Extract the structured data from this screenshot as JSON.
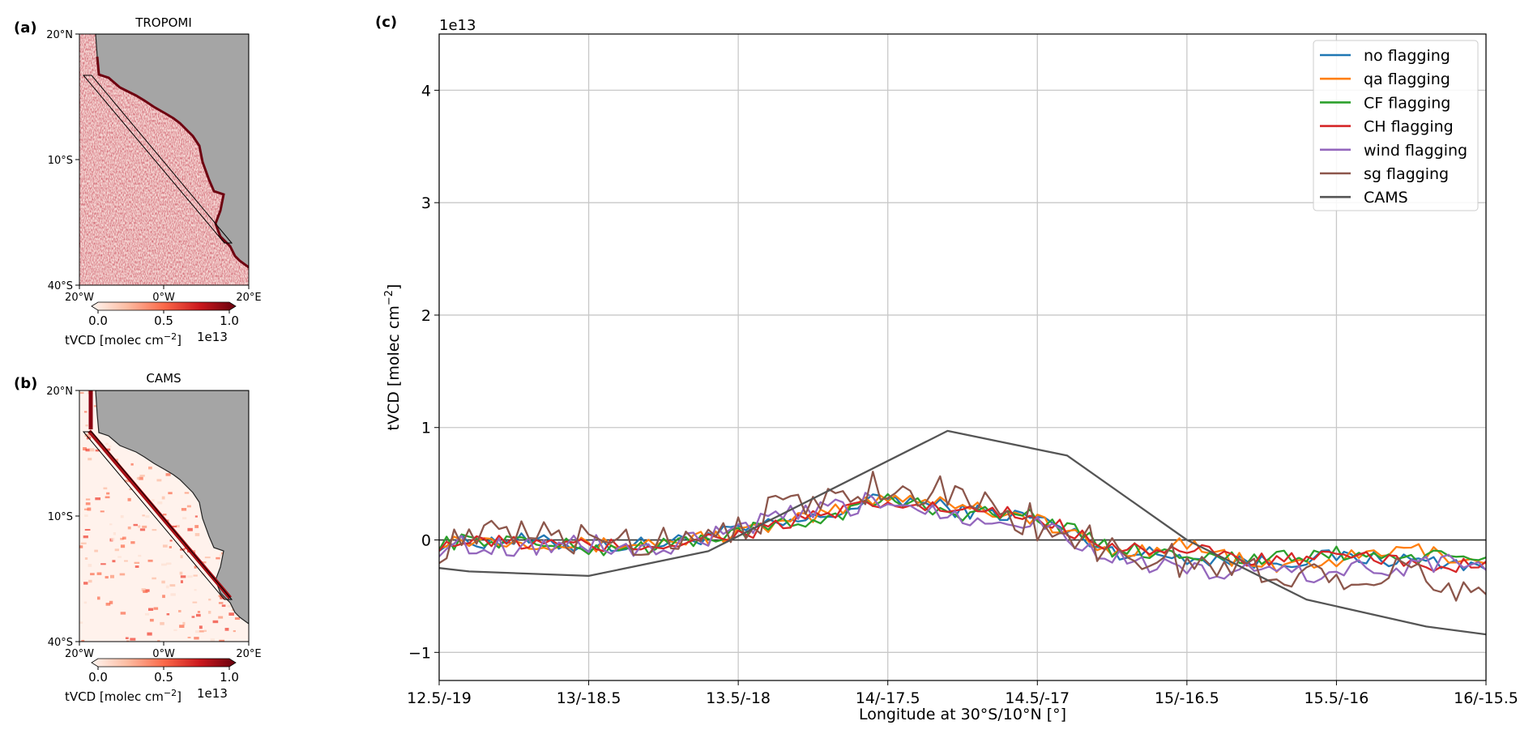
{
  "panel_a": {
    "tag": "(a)",
    "title": "TROPOMI",
    "lat_ticks": [
      "20°N",
      "10°S",
      "40°S"
    ],
    "lon_ticks": [
      "20°W",
      "0°W",
      "20°E"
    ],
    "colorbar": {
      "ticks": [
        "0.0",
        "0.5",
        "1.0"
      ],
      "label": "tVCD [molec cm",
      "label_sup": "−2",
      "label_end": "]",
      "exponent": "1e13",
      "colormap": "Reds"
    },
    "land_color": "#a5a5a5"
  },
  "panel_b": {
    "tag": "(b)",
    "title": "CAMS",
    "lat_ticks": [
      "20°N",
      "10°S",
      "40°S"
    ],
    "lon_ticks": [
      "20°W",
      "0°W",
      "20°E"
    ],
    "colorbar": {
      "ticks": [
        "0.0",
        "0.5",
        "1.0"
      ],
      "label": "tVCD [molec cm",
      "label_sup": "−2",
      "label_end": "]",
      "exponent": "1e13",
      "colormap": "Reds"
    },
    "land_color": "#a5a5a5"
  },
  "chart_data": {
    "type": "line",
    "tag": "(c)",
    "title": "",
    "xlabel": "Longitude at 30°S/10°N [°]",
    "ylabel_main": "tVCD [molec cm",
    "ylabel_sup": "−2",
    "ylabel_end": "]",
    "y_exponent": "1e13",
    "xlim": [
      0,
      7
    ],
    "ylim": [
      -1.25,
      4.5
    ],
    "x_tick_labels": [
      "12.5/-19",
      "13/-18.5",
      "13.5/-18",
      "14/-17.5",
      "14.5/-17",
      "15/-16.5",
      "15.5/-16",
      "16/-15.5"
    ],
    "y_ticks": [
      -1,
      0,
      1,
      2,
      3,
      4
    ],
    "grid": true,
    "legend_position": "top-right",
    "zero_line": true,
    "series": [
      {
        "name": "no flagging",
        "color": "#1f77b4",
        "anchors_x": [
          0,
          0.5,
          1,
          1.5,
          2,
          2.5,
          3,
          3.5,
          4,
          4.5,
          5,
          5.5,
          6,
          6.5,
          7
        ],
        "anchors_y": [
          -0.03,
          0.0,
          -0.06,
          -0.03,
          0.08,
          0.18,
          0.38,
          0.26,
          0.2,
          -0.1,
          -0.15,
          -0.2,
          -0.15,
          -0.18,
          -0.22
        ]
      },
      {
        "name": "qa flagging",
        "color": "#ff7f0e",
        "anchors_x": [
          0,
          0.5,
          1,
          1.5,
          2,
          2.5,
          3,
          3.5,
          4,
          4.5,
          5,
          5.5,
          6,
          6.5,
          7
        ],
        "anchors_y": [
          0.0,
          0.0,
          -0.05,
          -0.02,
          0.06,
          0.2,
          0.4,
          0.32,
          0.18,
          -0.12,
          -0.03,
          -0.25,
          -0.18,
          -0.08,
          -0.2
        ]
      },
      {
        "name": "CF flagging",
        "color": "#2ca02c",
        "anchors_x": [
          0,
          0.5,
          1,
          1.5,
          2,
          2.5,
          3,
          3.5,
          4,
          4.5,
          5,
          5.5,
          6,
          6.5,
          7
        ],
        "anchors_y": [
          -0.02,
          0.0,
          -0.08,
          -0.05,
          0.07,
          0.17,
          0.36,
          0.24,
          0.22,
          -0.08,
          -0.12,
          -0.18,
          -0.12,
          -0.15,
          -0.18
        ]
      },
      {
        "name": "CH flagging",
        "color": "#d62728",
        "anchors_x": [
          0,
          0.5,
          1,
          1.5,
          2,
          2.5,
          3,
          3.5,
          4,
          4.5,
          5,
          5.5,
          6,
          6.5,
          7
        ],
        "anchors_y": [
          -0.03,
          -0.02,
          -0.06,
          -0.04,
          0.05,
          0.2,
          0.32,
          0.26,
          0.2,
          -0.05,
          -0.1,
          -0.18,
          -0.16,
          -0.2,
          -0.25
        ]
      },
      {
        "name": "wind flagging",
        "color": "#9467bd",
        "anchors_x": [
          0,
          0.5,
          1,
          1.5,
          2,
          2.5,
          3,
          3.5,
          4,
          4.5,
          5,
          5.5,
          6,
          6.5,
          7
        ],
        "anchors_y": [
          -0.05,
          -0.05,
          -0.04,
          -0.1,
          0.1,
          0.25,
          0.35,
          0.22,
          0.16,
          -0.15,
          -0.3,
          -0.28,
          -0.3,
          -0.22,
          -0.2
        ]
      },
      {
        "name": "sg flagging",
        "color": "#8c564b",
        "anchors_x": [
          0,
          0.5,
          1,
          1.5,
          2,
          2.5,
          3,
          3.5,
          4,
          4.5,
          5,
          5.5,
          6,
          6.5,
          7
        ],
        "anchors_y": [
          -0.05,
          0.05,
          0.0,
          0.0,
          0.15,
          0.35,
          0.5,
          0.38,
          0.15,
          -0.1,
          -0.2,
          -0.3,
          -0.28,
          -0.32,
          -0.45
        ]
      },
      {
        "name": "CAMS",
        "color": "#555555",
        "step": false,
        "x": [
          0,
          0.2,
          1,
          1.8,
          3.4,
          4.2,
          5.0,
          5.8,
          6.6,
          7
        ],
        "y": [
          -0.25,
          -0.28,
          -0.32,
          -0.1,
          0.97,
          0.75,
          0.0,
          -0.53,
          -0.77,
          -0.84
        ]
      }
    ]
  }
}
